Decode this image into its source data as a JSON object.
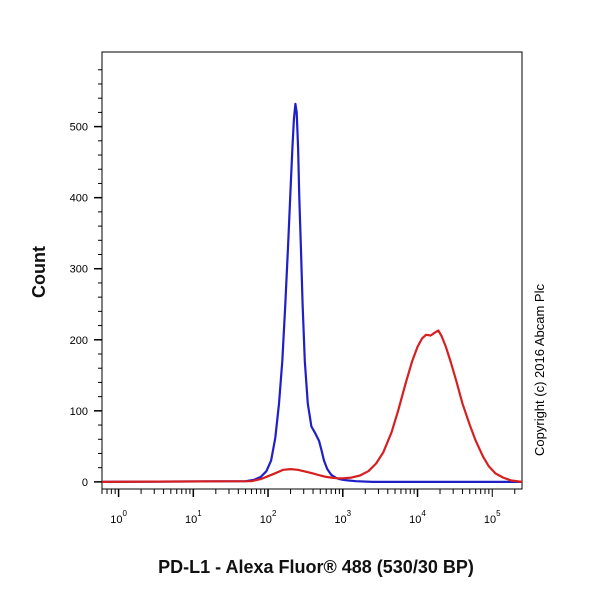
{
  "chart_data": {
    "type": "line",
    "title": "",
    "xlabel": "PD-L1 - Alexa Fluor® 488 (530/30 BP)",
    "ylabel": "Count",
    "x_scale": "log",
    "xlim": [
      0.6,
      250000
    ],
    "ylim": [
      -10,
      605
    ],
    "x_ticks": [
      {
        "value": 1,
        "base": "10",
        "exp": "0"
      },
      {
        "value": 10,
        "base": "10",
        "exp": "1"
      },
      {
        "value": 100,
        "base": "10",
        "exp": "2"
      },
      {
        "value": 1000,
        "base": "10",
        "exp": "3"
      },
      {
        "value": 10000,
        "base": "10",
        "exp": "4"
      },
      {
        "value": 100000,
        "base": "10",
        "exp": "5"
      }
    ],
    "y_ticks": [
      0,
      100,
      200,
      300,
      400,
      500
    ],
    "grid": false,
    "series": [
      {
        "color": "#1f1fc8",
        "x": [
          0.6,
          50,
          65,
          80,
          95,
          110,
          125,
          140,
          155,
          170,
          185,
          200,
          212,
          222,
          232,
          242,
          252,
          262,
          275,
          290,
          310,
          340,
          380,
          430,
          480,
          520,
          560,
          620,
          700,
          800,
          900,
          1000,
          1200,
          1500,
          2500,
          10000,
          100000,
          250000
        ],
        "y": [
          0,
          1,
          3,
          7,
          15,
          30,
          62,
          110,
          170,
          250,
          330,
          410,
          470,
          510,
          532,
          520,
          470,
          400,
          330,
          250,
          170,
          110,
          78,
          68,
          58,
          44,
          30,
          18,
          10,
          6,
          4,
          3,
          2,
          1,
          0,
          0,
          0,
          0
        ]
      },
      {
        "color": "#d62020",
        "x": [
          0.6,
          60,
          80,
          100,
          130,
          160,
          200,
          250,
          300,
          400,
          500,
          600,
          700,
          850,
          1000,
          1300,
          1700,
          2200,
          2800,
          3500,
          4500,
          5500,
          7000,
          8500,
          10000,
          11500,
          13000,
          15000,
          17000,
          19000,
          21000,
          24000,
          28000,
          33000,
          40000,
          50000,
          60000,
          75000,
          90000,
          110000,
          140000,
          180000,
          250000
        ],
        "y": [
          0,
          1,
          4,
          8,
          13,
          17,
          18,
          17,
          15,
          12,
          9,
          7,
          6,
          5,
          5,
          6,
          9,
          15,
          26,
          42,
          70,
          100,
          140,
          170,
          190,
          202,
          207,
          206,
          210,
          213,
          205,
          190,
          168,
          142,
          110,
          80,
          58,
          36,
          22,
          12,
          6,
          2,
          0
        ]
      }
    ],
    "annotations": [
      "Copyright (c) 2016 Abcam Plc"
    ]
  }
}
